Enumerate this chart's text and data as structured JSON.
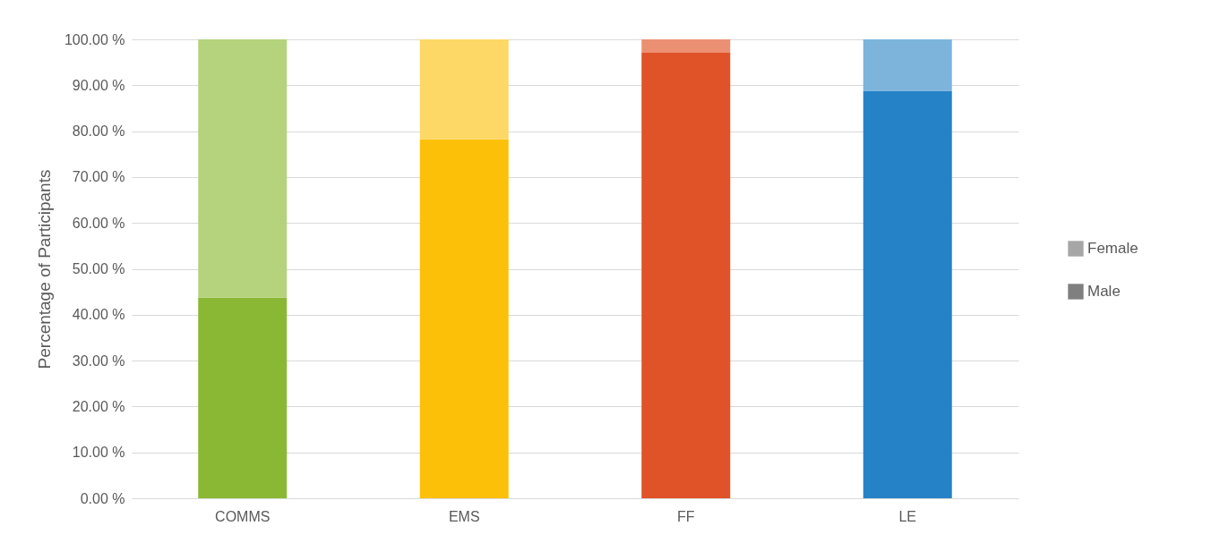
{
  "chart_data": {
    "type": "bar",
    "ylabel": "Percentage of Participants",
    "categories": [
      "COMMS",
      "EMS",
      "FF",
      "LE"
    ],
    "stacked": true,
    "legend": "right",
    "grid": "y",
    "ylim": [
      0,
      100
    ],
    "yticks": [
      {
        "value": 0,
        "label": "0.00 %"
      },
      {
        "value": 10,
        "label": "10.00 %"
      },
      {
        "value": 20,
        "label": "20.00 %"
      },
      {
        "value": 30,
        "label": "30.00 %"
      },
      {
        "value": 40,
        "label": "40.00 %"
      },
      {
        "value": 50,
        "label": "50.00 %"
      },
      {
        "value": 60,
        "label": "60.00 %"
      },
      {
        "value": 70,
        "label": "70.00 %"
      },
      {
        "value": 80,
        "label": "80.00 %"
      },
      {
        "value": 90,
        "label": "90.00 %"
      },
      {
        "value": 100,
        "label": "100.00 %"
      }
    ],
    "series": [
      {
        "name": "Male",
        "color": "#7f7f7f",
        "colors": [
          "#8bb834",
          "#fdc009",
          "#e05227",
          "#2582c6"
        ],
        "values": [
          43.7,
          78.2,
          97.1,
          88.8
        ]
      },
      {
        "name": "Female",
        "color": "#a6a6a6",
        "colors": [
          "#b4d37c",
          "#fdd866",
          "#ec9073",
          "#7cb4dc"
        ],
        "values": [
          56.3,
          21.8,
          2.9,
          11.2
        ]
      }
    ]
  }
}
